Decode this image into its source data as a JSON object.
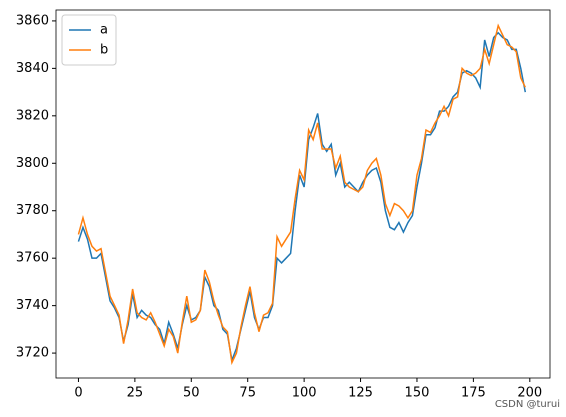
{
  "chart_data": {
    "type": "line",
    "x": [
      0,
      2,
      4,
      6,
      8,
      10,
      12,
      14,
      16,
      18,
      20,
      22,
      24,
      26,
      28,
      30,
      32,
      34,
      36,
      38,
      40,
      42,
      44,
      46,
      48,
      50,
      52,
      54,
      56,
      58,
      60,
      62,
      64,
      66,
      68,
      70,
      72,
      74,
      76,
      78,
      80,
      82,
      84,
      86,
      88,
      90,
      92,
      94,
      96,
      98,
      100,
      102,
      104,
      106,
      108,
      110,
      112,
      114,
      116,
      118,
      120,
      122,
      124,
      126,
      128,
      130,
      132,
      134,
      136,
      138,
      140,
      142,
      144,
      146,
      148,
      150,
      152,
      154,
      156,
      158,
      160,
      162,
      164,
      166,
      168,
      170,
      172,
      174,
      176,
      178,
      180,
      182,
      184,
      186,
      188,
      190,
      192,
      194,
      196,
      198
    ],
    "series": [
      {
        "name": "a",
        "color": "#1f77b4",
        "values": [
          3767,
          3773,
          3768,
          3760,
          3760,
          3762,
          3752,
          3742,
          3739,
          3735,
          3725,
          3732,
          3745,
          3735,
          3738,
          3736,
          3735,
          3732,
          3730,
          3724,
          3733,
          3728,
          3722,
          3732,
          3740,
          3734,
          3735,
          3738,
          3752,
          3748,
          3740,
          3738,
          3730,
          3728,
          3717,
          3722,
          3730,
          3738,
          3746,
          3735,
          3730,
          3735,
          3735,
          3740,
          3760,
          3758,
          3760,
          3762,
          3780,
          3795,
          3790,
          3810,
          3815,
          3821,
          3808,
          3805,
          3808,
          3795,
          3800,
          3790,
          3792,
          3790,
          3788,
          3792,
          3795,
          3797,
          3798,
          3792,
          3780,
          3773,
          3772,
          3775,
          3771,
          3775,
          3778,
          3790,
          3800,
          3812,
          3812,
          3815,
          3822,
          3822,
          3824,
          3828,
          3830,
          3838,
          3839,
          3838,
          3836,
          3832,
          3852,
          3845,
          3853,
          3855,
          3853,
          3852,
          3848,
          3848,
          3840,
          3830
        ]
      },
      {
        "name": "b",
        "color": "#ff7f0e",
        "values": [
          3770,
          3777,
          3770,
          3765,
          3763,
          3764,
          3754,
          3744,
          3740,
          3736,
          3724,
          3734,
          3747,
          3737,
          3735,
          3734,
          3737,
          3733,
          3728,
          3723,
          3730,
          3727,
          3720,
          3733,
          3744,
          3733,
          3734,
          3738,
          3755,
          3750,
          3742,
          3736,
          3731,
          3729,
          3716,
          3720,
          3731,
          3740,
          3748,
          3737,
          3729,
          3736,
          3737,
          3741,
          3769,
          3765,
          3768,
          3771,
          3785,
          3797,
          3793,
          3814,
          3810,
          3817,
          3806,
          3806,
          3806,
          3798,
          3803,
          3792,
          3790,
          3789,
          3788,
          3790,
          3797,
          3800,
          3802,
          3795,
          3783,
          3778,
          3783,
          3782,
          3780,
          3777,
          3780,
          3795,
          3802,
          3814,
          3813,
          3817,
          3820,
          3824,
          3820,
          3827,
          3828,
          3840,
          3838,
          3837,
          3838,
          3840,
          3848,
          3842,
          3850,
          3858,
          3854,
          3850,
          3849,
          3847,
          3836,
          3832
        ]
      }
    ],
    "xlim": [
      -9.95,
      208.95
    ],
    "ylim": [
      3709.5,
      3864.6
    ],
    "xticks": [
      0,
      25,
      50,
      75,
      100,
      125,
      150,
      175,
      200
    ],
    "yticks": [
      3720,
      3740,
      3760,
      3780,
      3800,
      3820,
      3840,
      3860
    ],
    "legend": "upper left",
    "watermark": "CSDN @turui"
  }
}
